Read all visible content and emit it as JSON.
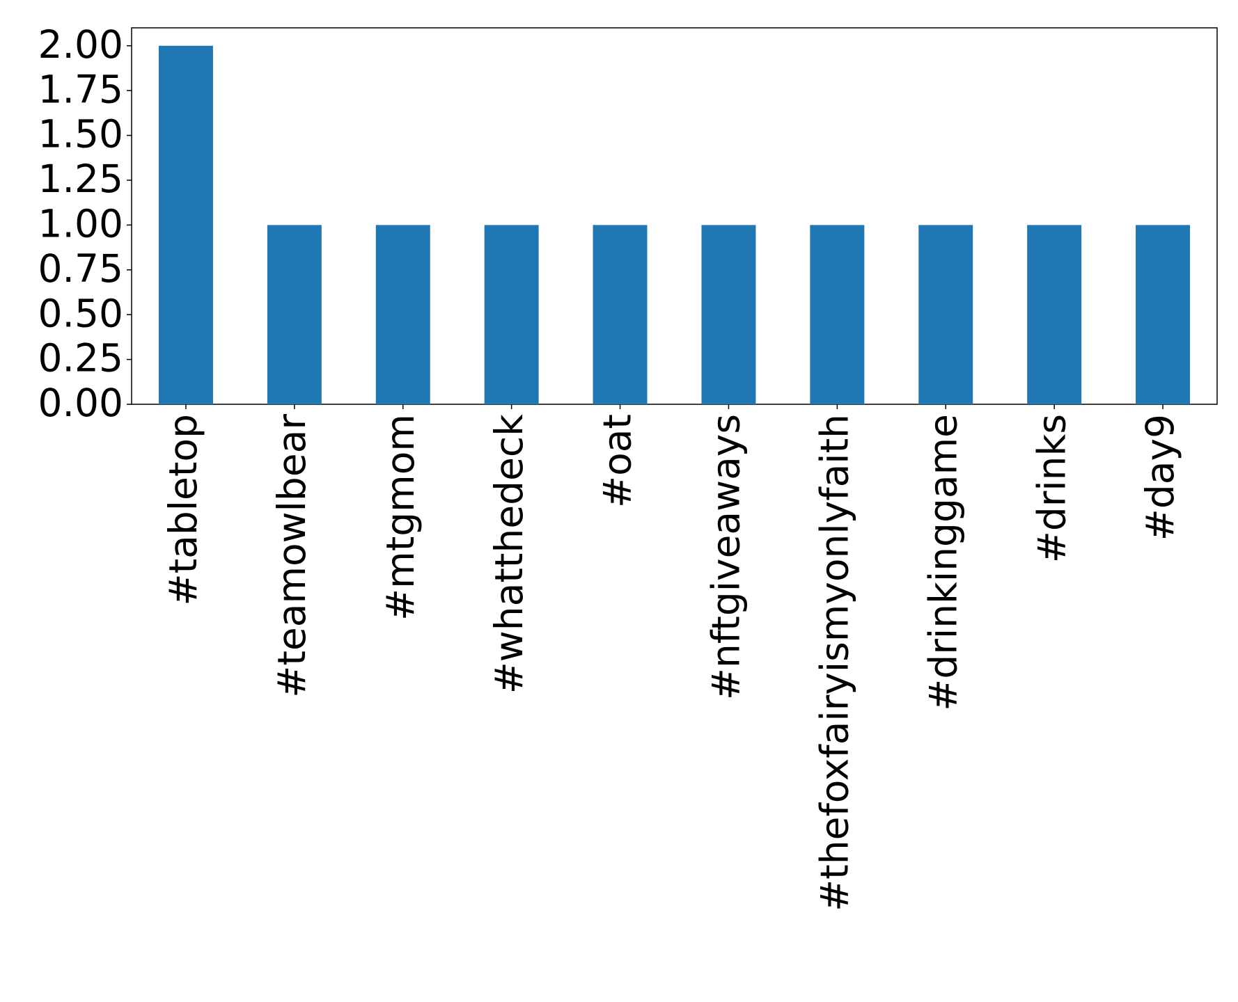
{
  "chart_data": {
    "type": "bar",
    "categories": [
      "#tabletop",
      "#teamowlbear",
      "#mtgmom",
      "#whatthedeck",
      "#oat",
      "#nftgiveaways",
      "#thefoxfairyismyonlyfaith",
      "#drinkinggame",
      "#drinks",
      "#day9"
    ],
    "values": [
      2,
      1,
      1,
      1,
      1,
      1,
      1,
      1,
      1,
      1
    ],
    "color": "#1f77b4",
    "ylim": [
      0,
      2.1
    ],
    "yticks": [
      {
        "value": 0,
        "label": "0.00"
      },
      {
        "value": 0.25,
        "label": "0.25"
      },
      {
        "value": 0.5,
        "label": "0.50"
      },
      {
        "value": 0.75,
        "label": "0.75"
      },
      {
        "value": 1,
        "label": "1.00"
      },
      {
        "value": 1.25,
        "label": "1.25"
      },
      {
        "value": 1.5,
        "label": "1.50"
      },
      {
        "value": 1.75,
        "label": "1.75"
      },
      {
        "value": 2,
        "label": "2.00"
      }
    ],
    "grid": false
  }
}
